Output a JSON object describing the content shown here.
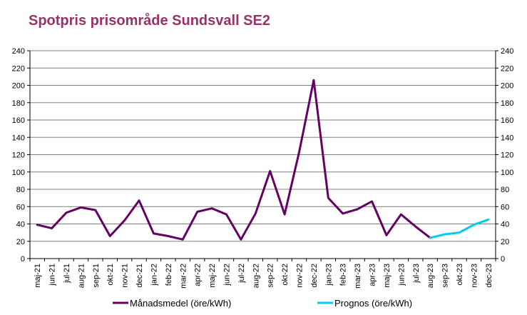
{
  "chart_data": {
    "type": "line",
    "title": "Spotpris prisområde Sundsvall SE2",
    "xlabel": "",
    "ylabel": "",
    "ylim": [
      0,
      240
    ],
    "yticks": [
      "0",
      "20",
      "40",
      "60",
      "80",
      "100",
      "120",
      "140",
      "160",
      "180",
      "200",
      "220",
      "240"
    ],
    "grid": true,
    "legend_position": "bottom",
    "categories": [
      "maj-21",
      "jun-21",
      "jul-21",
      "aug-21",
      "sep-21",
      "okt-21",
      "nov-21",
      "dec-21",
      "jan-22",
      "feb-22",
      "mar-22",
      "apr-22",
      "maj-22",
      "jun-22",
      "jul-22",
      "aug-22",
      "sep-22",
      "okt-22",
      "nov-22",
      "dec-22",
      "jan-23",
      "feb-23",
      "mar-23",
      "apr-23",
      "maj-23",
      "jun-23",
      "jul-23",
      "aug-23",
      "sep-23",
      "okt-23",
      "nov-23",
      "dec-23"
    ],
    "series": [
      {
        "name": "Månadsmedel (öre/kWh)",
        "color": "#660066",
        "values": [
          39,
          35,
          53,
          59,
          56,
          26,
          44,
          67,
          29,
          26,
          22,
          54,
          58,
          51,
          22,
          52,
          101,
          51,
          123,
          206,
          70,
          52,
          57,
          66,
          27,
          51,
          37,
          24,
          null,
          null,
          null,
          null
        ]
      },
      {
        "name": "Prognos (öre/kWh)",
        "color": "#00ccee",
        "values": [
          null,
          null,
          null,
          null,
          null,
          null,
          null,
          null,
          null,
          null,
          null,
          null,
          null,
          null,
          null,
          null,
          null,
          null,
          null,
          null,
          null,
          null,
          null,
          null,
          null,
          null,
          null,
          24,
          28,
          30,
          39,
          45
        ]
      }
    ]
  }
}
